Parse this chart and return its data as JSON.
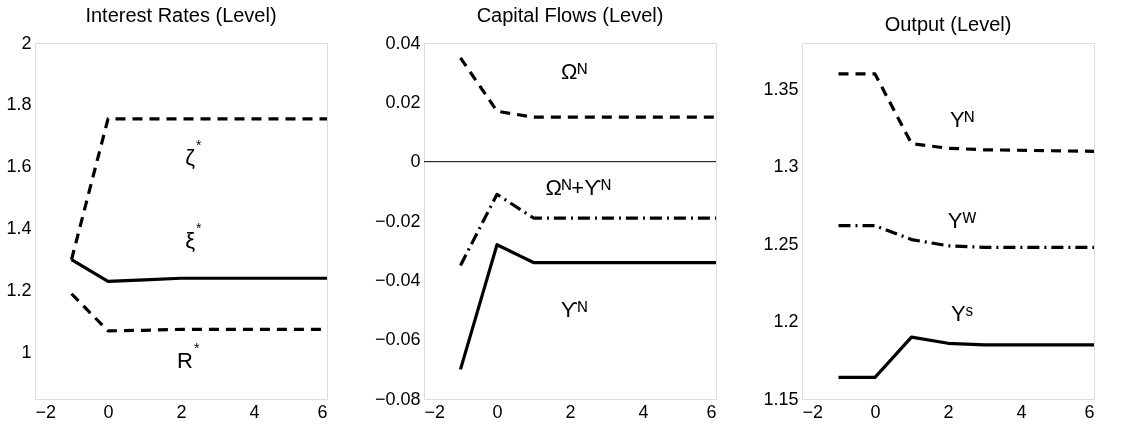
{
  "chart_data": [
    {
      "type": "line",
      "title": "Interest Rates (Level)",
      "x": [
        -1,
        0,
        1,
        2,
        3,
        6
      ],
      "xlim": [
        -2,
        6
      ],
      "xticks": [
        -2,
        0,
        2,
        4,
        6
      ],
      "ylim": [
        0.85,
        2
      ],
      "yticks": [
        1,
        1.2,
        1.4,
        1.6,
        1.8,
        2
      ],
      "grid": false,
      "marker": "none",
      "series": [
        {
          "name": "ζ$^{*}$",
          "color": "#000000",
          "line_style": "dashed",
          "values": [
            1.3,
            1.755,
            1.755,
            1.755,
            1.755,
            1.755
          ]
        },
        {
          "name": "ξ$^{*}$",
          "color": "#000000",
          "line_style": "solid",
          "values": [
            1.3,
            1.23,
            1.235,
            1.24,
            1.24,
            1.24
          ]
        },
        {
          "name": "R$^{*}$",
          "color": "#000000",
          "line_style": "dashed",
          "values": [
            1.19,
            1.07,
            1.072,
            1.075,
            1.075,
            1.075
          ]
        }
      ]
    },
    {
      "type": "line",
      "title": "Capital Flows (Level)",
      "x": [
        -1,
        0,
        1,
        2,
        3,
        6
      ],
      "xlim": [
        -2,
        6
      ],
      "xticks": [
        -2,
        0,
        2,
        4,
        6
      ],
      "ylim": [
        -0.08,
        0.04
      ],
      "yticks": [
        -0.08,
        -0.06,
        -0.04,
        -0.02,
        0,
        0.02,
        0.04
      ],
      "grid": false,
      "marker": "none",
      "series": [
        {
          "name": "Ωᴺ",
          "color": "#000000",
          "line_style": "dashed",
          "values": [
            0.035,
            0.017,
            0.015,
            0.015,
            0.015,
            0.015
          ]
        },
        {
          "name": "Ωᴺ+ϒᴺ",
          "color": "#000000",
          "line_style": "dashdot",
          "values": [
            -0.035,
            -0.011,
            -0.019,
            -0.019,
            -0.019,
            -0.019
          ]
        },
        {
          "name": "ϒᴺ",
          "color": "#000000",
          "line_style": "solid",
          "values": [
            -0.07,
            -0.028,
            -0.034,
            -0.034,
            -0.034,
            -0.034
          ]
        }
      ],
      "ref_lines": [
        {
          "axis": "y",
          "value": 0,
          "color": "#000000",
          "line_style": "solid"
        }
      ]
    },
    {
      "type": "line",
      "title": "Output (Level)",
      "x": [
        -1,
        0,
        1,
        2,
        3,
        6
      ],
      "xlim": [
        -2,
        6
      ],
      "xticks": [
        -2,
        0,
        2,
        4,
        6
      ],
      "ylim": [
        1.15,
        1.38
      ],
      "yticks": [
        1.15,
        1.2,
        1.25,
        1.3,
        1.35
      ],
      "grid": false,
      "marker": "none",
      "series": [
        {
          "name": "Yᴺ",
          "color": "#000000",
          "line_style": "dashed",
          "values": [
            1.36,
            1.36,
            1.315,
            1.312,
            1.311,
            1.31
          ]
        },
        {
          "name": "Yᵂ",
          "color": "#000000",
          "line_style": "dashdot",
          "values": [
            1.262,
            1.262,
            1.253,
            1.249,
            1.248,
            1.248
          ]
        },
        {
          "name": "Yˢ",
          "color": "#000000",
          "line_style": "solid",
          "values": [
            1.164,
            1.164,
            1.19,
            1.186,
            1.185,
            1.185
          ]
        }
      ]
    }
  ]
}
